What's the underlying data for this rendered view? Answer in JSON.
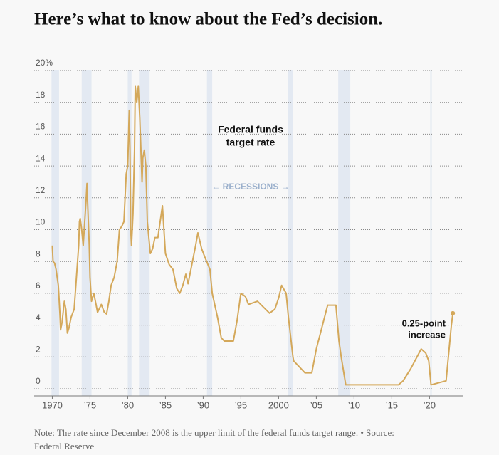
{
  "chart_data": {
    "type": "line",
    "title": "Here’s what to know about the Fed’s decision.",
    "note": [
      "Note: The rate since December 2008 is the upper limit of the federal funds target range.  •  Source:",
      "Federal Reserve"
    ],
    "annotations": {
      "series_label": [
        "Federal funds",
        "target rate"
      ],
      "recessions_label": "← RECESSIONS →",
      "end_label": [
        "0.25-point",
        "increase"
      ]
    },
    "recessions": [
      [
        1969.9,
        1970.9
      ],
      [
        1973.9,
        1975.2
      ],
      [
        1980.0,
        1980.5
      ],
      [
        1981.5,
        1982.9
      ],
      [
        1990.5,
        1991.2
      ],
      [
        2001.2,
        2001.9
      ],
      [
        2007.9,
        2009.5
      ],
      [
        2020.1,
        2020.3
      ]
    ],
    "recession_color": "#e3e9f2",
    "xlim": [
      1967.6,
      2024.4
    ],
    "xticks": [
      {
        "value": 1970,
        "label": "1970"
      },
      {
        "value": 1975,
        "label": "’75"
      },
      {
        "value": 1980,
        "label": "’80"
      },
      {
        "value": 1985,
        "label": "’85"
      },
      {
        "value": 1990,
        "label": "’90"
      },
      {
        "value": 1995,
        "label": "’95"
      },
      {
        "value": 2000,
        "label": "2000"
      },
      {
        "value": 2005,
        "label": "’05"
      },
      {
        "value": 2010,
        "label": "’10"
      },
      {
        "value": 2015,
        "label": "’15"
      },
      {
        "value": 2020,
        "label": "’20"
      }
    ],
    "ylim": [
      0,
      20
    ],
    "yticks": [
      0,
      2,
      4,
      6,
      8,
      10,
      12,
      14,
      16,
      18,
      {
        "value": 20,
        "label": "20%"
      }
    ],
    "grid": true,
    "series": [
      {
        "color": "#d4a85a",
        "x": [
          1970.0,
          1970.1,
          1970.3,
          1970.5,
          1970.8,
          1971.0,
          1971.1,
          1971.3,
          1971.6,
          1971.8,
          1972.0,
          1972.2,
          1972.5,
          1972.9,
          1973.2,
          1973.5,
          1973.6,
          1973.7,
          1973.9,
          1974.1,
          1974.3,
          1974.5,
          1974.6,
          1974.7,
          1974.9,
          1975.0,
          1975.2,
          1975.5,
          1975.8,
          1976.0,
          1976.5,
          1976.9,
          1977.2,
          1977.5,
          1977.8,
          1978.2,
          1978.6,
          1978.9,
          1979.2,
          1979.5,
          1979.8,
          1980.0,
          1980.2,
          1980.3,
          1980.4,
          1980.5,
          1980.7,
          1980.9,
          1981.0,
          1981.2,
          1981.4,
          1981.6,
          1981.9,
          1982.0,
          1982.2,
          1982.4,
          1982.6,
          1982.8,
          1983.0,
          1983.3,
          1983.6,
          1984.0,
          1984.3,
          1984.6,
          1984.8,
          1985.0,
          1985.5,
          1986.0,
          1986.5,
          1986.9,
          1987.3,
          1987.7,
          1988.0,
          1988.5,
          1989.0,
          1989.3,
          1989.8,
          1990.2,
          1990.9,
          1991.2,
          1991.9,
          1992.4,
          1992.8,
          1994.0,
          1994.5,
          1995.0,
          1995.6,
          1996.0,
          1997.2,
          1998.8,
          1999.5,
          2000.0,
          2000.4,
          2001.0,
          2001.3,
          2001.9,
          2002.0,
          2003.0,
          2003.5,
          2004.4,
          2005.0,
          2006.5,
          2007.6,
          2008.0,
          2008.3,
          2008.9,
          2015.9,
          2016.5,
          2017.5,
          2018.9,
          2019.5,
          2019.9,
          2020.2,
          2022.2,
          2022.6,
          2022.9,
          2023.1
        ],
        "values": [
          9.0,
          8.0,
          7.9,
          7.5,
          6.5,
          4.8,
          3.7,
          4.2,
          5.5,
          5.0,
          3.5,
          3.8,
          4.5,
          5.0,
          7.0,
          9.0,
          10.5,
          10.7,
          10.0,
          9.0,
          10.5,
          12.0,
          12.9,
          11.5,
          9.0,
          7.0,
          5.5,
          6.0,
          5.3,
          4.8,
          5.3,
          4.8,
          4.7,
          5.5,
          6.5,
          7.0,
          8.0,
          10.0,
          10.2,
          10.5,
          13.5,
          14.0,
          17.5,
          15.0,
          10.0,
          9.0,
          11.0,
          15.0,
          19.0,
          18.0,
          19.0,
          17.0,
          13.0,
          14.5,
          15.0,
          14.0,
          10.5,
          9.5,
          8.5,
          8.8,
          9.5,
          9.5,
          10.5,
          11.5,
          10.0,
          8.5,
          7.8,
          7.5,
          6.3,
          6.0,
          6.5,
          7.2,
          6.6,
          7.8,
          9.0,
          9.8,
          8.8,
          8.3,
          7.5,
          6.0,
          4.5,
          3.2,
          3.0,
          3.0,
          4.3,
          6.0,
          5.8,
          5.3,
          5.5,
          4.75,
          5.0,
          5.7,
          6.5,
          6.0,
          4.5,
          2.0,
          1.75,
          1.25,
          1.0,
          1.0,
          2.5,
          5.25,
          5.25,
          3.0,
          2.0,
          0.25,
          0.25,
          0.5,
          1.25,
          2.5,
          2.25,
          1.75,
          0.25,
          0.5,
          2.5,
          4.0,
          4.75
        ]
      }
    ]
  }
}
